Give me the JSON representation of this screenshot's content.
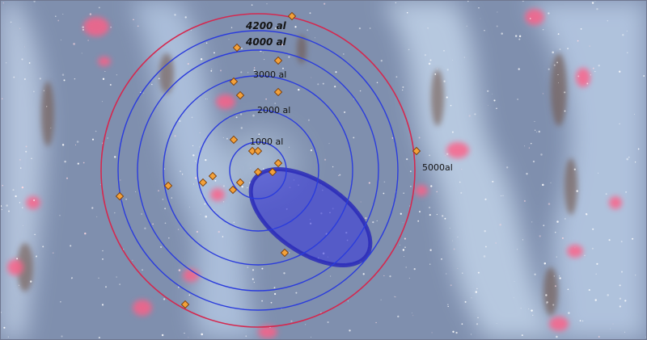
{
  "map": {
    "ring_labels": {
      "r1000": "1000 al",
      "r2000": "2000 al",
      "r3000": "3000 al",
      "r4000": "4000 al",
      "r4200": "4200 al",
      "r5000": "5000al"
    },
    "colors": {
      "inner_rings": "#2b3cdc",
      "outer_ring": "#d4284f",
      "star_marker": "#f2a13a",
      "star_marker_stroke": "#7a3c06",
      "ellipse_fill": "#3b3bd8",
      "ellipse_stroke": "#2a2ab8",
      "sky_background": "#7f8fae",
      "dust_lane": "#c6d6ec",
      "nebula_pink": "#ff5f86",
      "dust_dark": "#6d4d3e"
    }
  }
}
